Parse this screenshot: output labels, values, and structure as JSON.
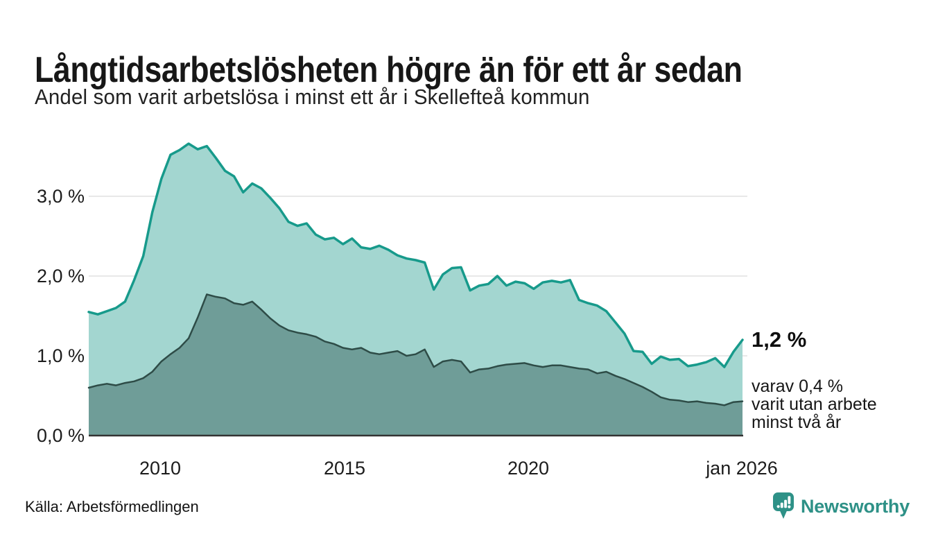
{
  "header": {
    "title": "Långtidsarbetslösheten högre än för ett år sedan",
    "subtitle": "Andel som varit arbetslösa i minst ett år i Skellefteå kommun"
  },
  "footer": {
    "source": "Källa: Arbetsförmedlingen",
    "brand": "Newsworthy",
    "brand_color": "#2e9187"
  },
  "chart_data": {
    "type": "area",
    "title": "Långtidsarbetslösheten högre än för ett år sedan",
    "subtitle": "Andel som varit arbetslösa i minst ett år i Skellefteå kommun",
    "unit": "%",
    "x_start": 2008.0,
    "x_step": 0.25,
    "x_end": 2026.0,
    "ylim": [
      0,
      3.9
    ],
    "grid_on": true,
    "grid_color": "#d9d9d9",
    "axis_color": "#333333",
    "x_ticks": [
      {
        "x": 2010,
        "label": "2010"
      },
      {
        "x": 2015,
        "label": "2015"
      },
      {
        "x": 2020,
        "label": "2020"
      },
      {
        "x": 2026,
        "label": "jan 2026"
      }
    ],
    "y_ticks": [
      {
        "value": 3.0,
        "label": "3,0 %"
      },
      {
        "value": 2.0,
        "label": "2,0 %"
      },
      {
        "value": 1.0,
        "label": "1,0 %"
      },
      {
        "value": 0.0,
        "label": "0,0 %"
      }
    ],
    "series": [
      {
        "name": "Arbetslösa minst ett år",
        "line_color": "#179a8b",
        "fill_color": "#a3d6d0",
        "line_width": 3.5,
        "latest_value": 1.2,
        "values": [
          1.55,
          1.52,
          1.56,
          1.6,
          1.68,
          1.95,
          2.25,
          2.8,
          3.22,
          3.52,
          3.58,
          3.66,
          3.59,
          3.63,
          3.48,
          3.32,
          3.25,
          3.05,
          3.16,
          3.1,
          2.98,
          2.85,
          2.68,
          2.63,
          2.66,
          2.52,
          2.46,
          2.48,
          2.4,
          2.47,
          2.36,
          2.34,
          2.38,
          2.33,
          2.26,
          2.22,
          2.2,
          2.17,
          1.83,
          2.02,
          2.1,
          2.11,
          1.82,
          1.88,
          1.9,
          2.0,
          1.88,
          1.93,
          1.91,
          1.84,
          1.92,
          1.94,
          1.92,
          1.95,
          1.7,
          1.66,
          1.63,
          1.56,
          1.42,
          1.28,
          1.06,
          1.05,
          0.9,
          0.99,
          0.95,
          0.96,
          0.87,
          0.89,
          0.92,
          0.97,
          0.86,
          1.05,
          1.2
        ]
      },
      {
        "name": "Varav utan arbete minst två år",
        "line_color": "#2e4c47",
        "fill_color": "#6f9d98",
        "line_width": 2.5,
        "latest_value": 0.4,
        "values": [
          0.6,
          0.63,
          0.65,
          0.63,
          0.66,
          0.68,
          0.72,
          0.8,
          0.93,
          1.02,
          1.1,
          1.22,
          1.48,
          1.77,
          1.74,
          1.72,
          1.66,
          1.64,
          1.68,
          1.58,
          1.47,
          1.38,
          1.32,
          1.29,
          1.27,
          1.24,
          1.18,
          1.15,
          1.1,
          1.08,
          1.1,
          1.04,
          1.02,
          1.04,
          1.06,
          1.0,
          1.02,
          1.08,
          0.86,
          0.93,
          0.95,
          0.93,
          0.79,
          0.83,
          0.84,
          0.87,
          0.89,
          0.9,
          0.91,
          0.88,
          0.86,
          0.88,
          0.88,
          0.86,
          0.84,
          0.83,
          0.78,
          0.8,
          0.75,
          0.71,
          0.66,
          0.61,
          0.55,
          0.48,
          0.45,
          0.44,
          0.42,
          0.43,
          0.41,
          0.4,
          0.38,
          0.42,
          0.43
        ]
      }
    ],
    "annotation": {
      "value_label": "1,2 %",
      "detail_lines": [
        "varav 0,4 %",
        "varit utan arbete",
        "minst två år"
      ]
    }
  }
}
